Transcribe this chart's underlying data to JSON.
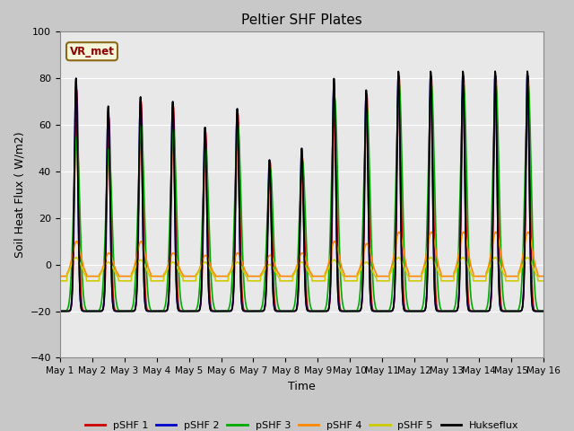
{
  "title": "Peltier SHF Plates",
  "xlabel": "Time",
  "ylabel": "Soil Heat Flux ( W/m2)",
  "ylim": [
    -40,
    100
  ],
  "xlim": [
    0,
    15
  ],
  "xtick_labels": [
    "May 1",
    "May 2",
    "May 3",
    "May 4",
    "May 5",
    "May 6",
    "May 7",
    "May 8",
    "May 9",
    "May 10",
    "May 11",
    "May 12",
    "May 13",
    "May 14",
    "May 15",
    "May 16"
  ],
  "xtick_positions": [
    0,
    1,
    2,
    3,
    4,
    5,
    6,
    7,
    8,
    9,
    10,
    11,
    12,
    13,
    14,
    15
  ],
  "ytick_positions": [
    -40,
    -20,
    0,
    20,
    40,
    60,
    80,
    100
  ],
  "fig_facecolor": "#c8c8c8",
  "plot_bg_color": "#e8e8e8",
  "annotation_text": "VR_met",
  "annotation_color": "#8B0000",
  "annotation_bg": "#f5f5dc",
  "annotation_edge": "#8B6914",
  "series_colors": [
    "#cc0000",
    "#0000cc",
    "#00aa00",
    "#ff8800",
    "#cccc00",
    "#000000"
  ],
  "legend_entries": [
    "pSHF 1",
    "pSHF 2",
    "pSHF 3",
    "pSHF 4",
    "pSHF 5",
    "Hukseflux"
  ],
  "day_peaks_red": [
    75,
    63,
    70,
    68,
    57,
    65,
    44,
    46,
    68,
    73,
    81,
    81,
    81,
    81,
    81
  ],
  "day_peaks_blue": [
    80,
    68,
    72,
    70,
    59,
    67,
    45,
    50,
    80,
    75,
    83,
    83,
    83,
    83,
    83
  ],
  "day_peaks_green": [
    55,
    50,
    60,
    58,
    50,
    60,
    42,
    45,
    72,
    68,
    78,
    78,
    78,
    78,
    78
  ],
  "day_peaks_orange": [
    10,
    5,
    10,
    5,
    4,
    5,
    4,
    5,
    10,
    9,
    14,
    14,
    14,
    14,
    14
  ],
  "day_peaks_yellow": [
    3,
    1,
    2,
    1,
    1,
    1,
    0,
    1,
    2,
    1,
    3,
    3,
    3,
    3,
    3
  ],
  "day_peaks_black": [
    80,
    68,
    72,
    70,
    59,
    67,
    45,
    50,
    80,
    75,
    83,
    83,
    83,
    83,
    83
  ]
}
